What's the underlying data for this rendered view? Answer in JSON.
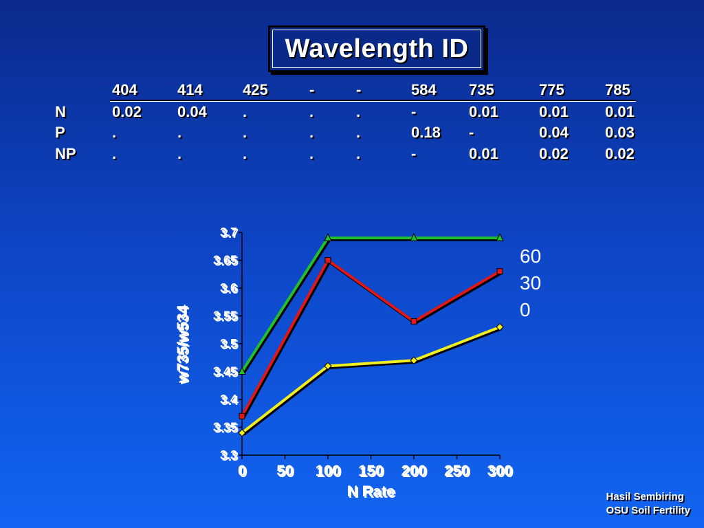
{
  "title": "Wavelength ID",
  "table": {
    "headers": [
      "404",
      "414",
      "425",
      "-",
      "-",
      "584",
      "735",
      "775",
      "785"
    ],
    "rows": [
      {
        "label": "N",
        "cells": [
          "0.02",
          "0.04",
          ".",
          ".",
          ".",
          "-",
          "0.01",
          "0.01",
          "0.01"
        ]
      },
      {
        "label": "P",
        "cells": [
          ".",
          ".",
          ".",
          ".",
          ".",
          "0.18",
          "-",
          "0.04",
          "0.03"
        ]
      },
      {
        "label": "NP",
        "cells": [
          ".",
          ".",
          ".",
          ".",
          ".",
          "-",
          "0.01",
          "0.02",
          "0.02"
        ]
      }
    ]
  },
  "chart_data": {
    "type": "line",
    "xlabel": "N Rate",
    "ylabel": "w735/w534",
    "xlim": [
      0,
      300
    ],
    "ylim": [
      3.3,
      3.7
    ],
    "xticks": [
      "0",
      "50",
      "100",
      "150",
      "200",
      "250",
      "300"
    ],
    "yticks": [
      "3.3",
      "3.35",
      "3.4",
      "3.45",
      "3.5",
      "3.55",
      "3.6",
      "3.65",
      "3.7"
    ],
    "x": [
      0,
      100,
      200,
      300
    ],
    "series": [
      {
        "name": "60",
        "color": "#22c02a",
        "marker": "triangle",
        "values": [
          3.45,
          3.69,
          3.69,
          3.69
        ]
      },
      {
        "name": "30",
        "color": "#e01818",
        "marker": "square",
        "values": [
          3.37,
          3.65,
          3.54,
          3.63
        ]
      },
      {
        "name": "0",
        "color": "#f0f020",
        "marker": "diamond",
        "values": [
          3.34,
          3.46,
          3.47,
          3.53
        ]
      }
    ],
    "legend": "right",
    "grid": false
  },
  "credit": {
    "line1": "Hasil Sembiring",
    "line2": "OSU Soil Fertility"
  }
}
